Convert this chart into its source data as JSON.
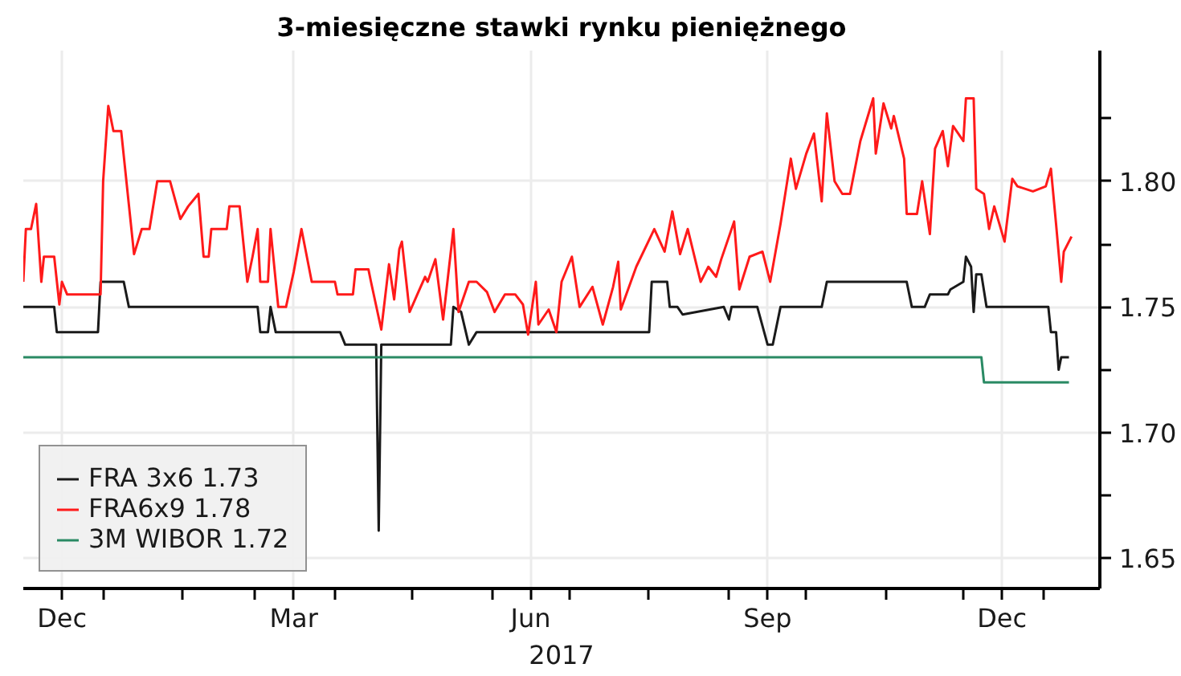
{
  "chart_data": {
    "type": "line",
    "title": "3-miesięczne stawki rynku pieniężnego",
    "xlim": [
      "2016-12-01",
      "2018-01-23"
    ],
    "xticks": [
      {
        "value": "2016-12-16",
        "label": "Dec"
      },
      {
        "value": "2017-01-01",
        "label": null
      },
      {
        "value": "2017-02-01",
        "label": null
      },
      {
        "value": "2017-03-01",
        "label": null
      },
      {
        "value": "2017-03-16",
        "label": "Mar"
      },
      {
        "value": "2017-04-01",
        "label": null
      },
      {
        "value": "2017-05-01",
        "label": null
      },
      {
        "value": "2017-06-01",
        "label": null
      },
      {
        "value": "2017-06-16",
        "label": "Jun"
      },
      {
        "value": "2017-07-01",
        "label": null
      },
      {
        "value": "2017-08-01",
        "label": null
      },
      {
        "value": "2017-09-01",
        "label": null
      },
      {
        "value": "2017-09-16",
        "label": "Sep"
      },
      {
        "value": "2017-10-01",
        "label": null
      },
      {
        "value": "2017-11-01",
        "label": null
      },
      {
        "value": "2017-12-01",
        "label": null
      },
      {
        "value": "2017-12-16",
        "label": "Dec"
      },
      {
        "value": "2018-01-01",
        "label": null
      }
    ],
    "annotations": [
      "2017"
    ],
    "ylim": [
      1.638,
      1.852
    ],
    "yticks": [
      1.65,
      {
        "value": 1.675,
        "label": null
      },
      {
        "value": 1.7,
        "label": "1.70"
      },
      {
        "value": 1.725,
        "label": null
      },
      1.75,
      {
        "value": 1.775,
        "label": null
      },
      {
        "value": 1.8,
        "label": "1.80"
      },
      {
        "value": 1.825,
        "label": null
      }
    ],
    "grid": true,
    "legend": "bottom left",
    "line_style": "solid",
    "marker": "none",
    "series": [
      {
        "name": "FRA 3x6 1.73",
        "color": "#1a1a1a",
        "x": [
          "2016-12-01",
          "2016-12-13",
          "2016-12-14",
          "2016-12-30",
          "2016-12-31",
          "2017-01-09",
          "2017-01-11",
          "2017-03-02",
          "2017-03-03",
          "2017-03-06",
          "2017-03-07",
          "2017-03-09",
          "2017-04-03",
          "2017-04-05",
          "2017-04-17",
          "2017-04-18",
          "2017-04-19",
          "2017-05-16",
          "2017-05-17",
          "2017-05-20",
          "2017-05-23",
          "2017-05-26",
          "2017-08-01",
          "2017-08-02",
          "2017-08-08",
          "2017-08-09",
          "2017-08-12",
          "2017-08-14",
          "2017-08-30",
          "2017-09-01",
          "2017-09-02",
          "2017-09-12",
          "2017-09-16",
          "2017-09-18",
          "2017-09-21",
          "2017-10-07",
          "2017-10-09",
          "2017-11-09",
          "2017-11-11",
          "2017-11-16",
          "2017-11-18",
          "2017-11-25",
          "2017-11-26",
          "2017-12-01",
          "2017-12-02",
          "2017-12-04",
          "2017-12-05",
          "2017-12-06",
          "2017-12-08",
          "2017-12-10",
          "2018-01-03",
          "2018-01-04",
          "2018-01-06",
          "2018-01-07",
          "2018-01-08",
          "2018-01-11"
        ],
        "values": [
          1.75,
          1.75,
          1.74,
          1.74,
          1.76,
          1.76,
          1.75,
          1.75,
          1.74,
          1.74,
          1.75,
          1.74,
          1.74,
          1.735,
          1.735,
          1.661,
          1.735,
          1.735,
          1.75,
          1.748,
          1.735,
          1.74,
          1.74,
          1.76,
          1.76,
          1.75,
          1.75,
          1.747,
          1.75,
          1.745,
          1.75,
          1.75,
          1.735,
          1.735,
          1.75,
          1.75,
          1.76,
          1.76,
          1.75,
          1.75,
          1.755,
          1.755,
          1.757,
          1.76,
          1.77,
          1.766,
          1.748,
          1.763,
          1.763,
          1.75,
          1.75,
          1.74,
          1.74,
          1.725,
          1.73,
          1.73
        ]
      },
      {
        "name": "FRA6x9 1.78",
        "color": "#ff1a1a",
        "x": [
          "2016-12-01",
          "2016-12-02",
          "2016-12-04",
          "2016-12-06",
          "2016-12-08",
          "2016-12-09",
          "2016-12-13",
          "2016-12-15",
          "2016-12-16",
          "2016-12-18",
          "2016-12-31",
          "2017-01-01",
          "2017-01-03",
          "2017-01-05",
          "2017-01-08",
          "2017-01-13",
          "2017-01-16",
          "2017-01-19",
          "2017-01-22",
          "2017-01-27",
          "2017-01-31",
          "2017-02-03",
          "2017-02-07",
          "2017-02-09",
          "2017-02-11",
          "2017-02-12",
          "2017-02-18",
          "2017-02-19",
          "2017-02-23",
          "2017-02-26",
          "2017-02-28",
          "2017-03-02",
          "2017-03-03",
          "2017-03-06",
          "2017-03-07",
          "2017-03-10",
          "2017-03-13",
          "2017-03-16",
          "2017-03-19",
          "2017-03-23",
          "2017-04-01",
          "2017-04-02",
          "2017-04-08",
          "2017-04-09",
          "2017-04-14",
          "2017-04-15",
          "2017-04-19",
          "2017-04-22",
          "2017-04-24",
          "2017-04-26",
          "2017-04-27",
          "2017-04-30",
          "2017-05-03",
          "2017-05-06",
          "2017-05-07",
          "2017-05-10",
          "2017-05-13",
          "2017-05-17",
          "2017-05-19",
          "2017-05-23",
          "2017-05-26",
          "2017-05-30",
          "2017-06-02",
          "2017-06-06",
          "2017-06-10",
          "2017-06-13",
          "2017-06-15",
          "2017-06-18",
          "2017-06-19",
          "2017-06-23",
          "2017-06-26",
          "2017-06-28",
          "2017-07-02",
          "2017-07-05",
          "2017-07-10",
          "2017-07-14",
          "2017-07-18",
          "2017-07-20",
          "2017-07-21",
          "2017-07-27",
          "2017-08-03",
          "2017-08-07",
          "2017-08-10",
          "2017-08-13",
          "2017-08-16",
          "2017-08-21",
          "2017-08-24",
          "2017-08-27",
          "2017-08-29",
          "2017-09-03",
          "2017-09-05",
          "2017-09-09",
          "2017-09-14",
          "2017-09-17",
          "2017-09-21",
          "2017-09-25",
          "2017-09-27",
          "2017-10-01",
          "2017-10-04",
          "2017-10-07",
          "2017-10-09",
          "2017-10-12",
          "2017-10-15",
          "2017-10-18",
          "2017-10-22",
          "2017-10-27",
          "2017-10-28",
          "2017-10-31",
          "2017-11-03",
          "2017-11-04",
          "2017-11-08",
          "2017-11-09",
          "2017-11-13",
          "2017-11-15",
          "2017-11-18",
          "2017-11-20",
          "2017-11-23",
          "2017-11-25",
          "2017-11-27",
          "2017-12-01",
          "2017-12-02",
          "2017-12-05",
          "2017-12-06",
          "2017-12-09",
          "2017-12-11",
          "2017-12-13",
          "2017-12-17",
          "2017-12-20",
          "2017-12-22",
          "2017-12-28",
          "2018-01-02",
          "2018-01-04",
          "2018-01-06",
          "2018-01-08",
          "2018-01-09",
          "2018-01-12"
        ],
        "values": [
          1.76,
          1.781,
          1.781,
          1.791,
          1.76,
          1.77,
          1.77,
          1.751,
          1.76,
          1.755,
          1.755,
          1.8,
          1.83,
          1.82,
          1.82,
          1.771,
          1.781,
          1.781,
          1.8,
          1.8,
          1.785,
          1.79,
          1.795,
          1.77,
          1.77,
          1.781,
          1.781,
          1.79,
          1.79,
          1.76,
          1.77,
          1.781,
          1.76,
          1.76,
          1.781,
          1.75,
          1.75,
          1.764,
          1.781,
          1.76,
          1.76,
          1.755,
          1.755,
          1.765,
          1.765,
          1.76,
          1.741,
          1.767,
          1.753,
          1.773,
          1.776,
          1.748,
          1.755,
          1.762,
          1.76,
          1.769,
          1.745,
          1.781,
          1.748,
          1.76,
          1.76,
          1.756,
          1.748,
          1.755,
          1.755,
          1.751,
          1.739,
          1.76,
          1.743,
          1.749,
          1.74,
          1.76,
          1.77,
          1.75,
          1.758,
          1.743,
          1.758,
          1.768,
          1.749,
          1.766,
          1.781,
          1.772,
          1.788,
          1.771,
          1.781,
          1.76,
          1.766,
          1.762,
          1.769,
          1.784,
          1.757,
          1.77,
          1.772,
          1.76,
          1.783,
          1.809,
          1.797,
          1.811,
          1.819,
          1.792,
          1.827,
          1.8,
          1.795,
          1.795,
          1.816,
          1.833,
          1.811,
          1.831,
          1.821,
          1.826,
          1.809,
          1.787,
          1.787,
          1.8,
          1.779,
          1.813,
          1.82,
          1.806,
          1.822,
          1.816,
          1.833,
          1.833,
          1.797,
          1.795,
          1.781,
          1.79,
          1.776,
          1.801,
          1.798,
          1.796,
          1.798,
          1.805,
          1.783,
          1.76,
          1.772,
          1.778
        ]
      },
      {
        "name": "3M WIBOR 1.72",
        "color": "#2a8a64",
        "x": [
          "2016-12-01",
          "2017-12-08",
          "2017-12-09",
          "2018-01-11"
        ],
        "values": [
          1.73,
          1.73,
          1.72,
          1.72
        ]
      }
    ]
  }
}
